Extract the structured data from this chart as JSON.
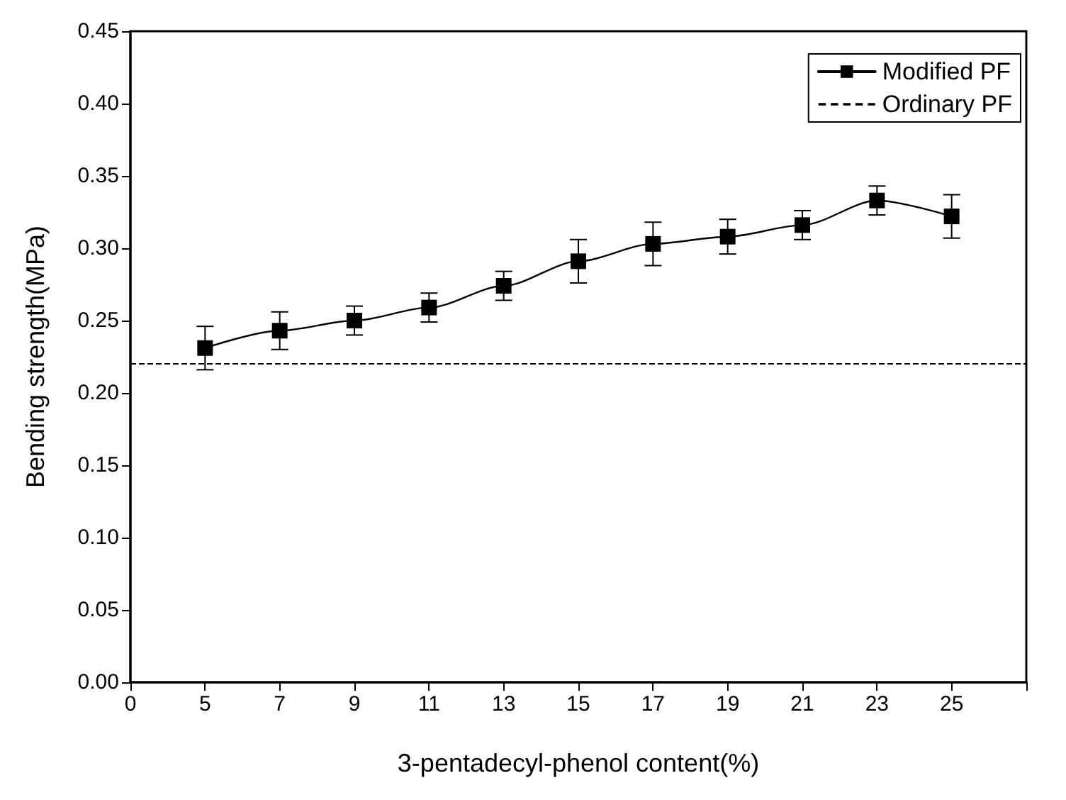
{
  "chart_data": {
    "type": "line",
    "xlabel": "3-pentadecyl-phenol content(%)",
    "ylabel": "Bending strength(MPa)",
    "categories": [
      "0",
      "5",
      "7",
      "9",
      "11",
      "13",
      "15",
      "17",
      "19",
      "21",
      "23",
      "25",
      null
    ],
    "series": [
      {
        "name": "Modified PF",
        "color": "#000000",
        "values": [
          null,
          0.231,
          0.243,
          0.25,
          0.259,
          0.274,
          0.291,
          0.303,
          0.308,
          0.316,
          0.333,
          0.322,
          null
        ],
        "errors": [
          null,
          0.015,
          0.013,
          0.01,
          0.01,
          0.01,
          0.015,
          0.015,
          0.012,
          0.01,
          0.01,
          0.015,
          null
        ]
      }
    ],
    "ref_lines": [
      {
        "axis": "y",
        "value": 0.22,
        "label": "Ordinary PF",
        "color": "#000000",
        "line_style": "dashed"
      }
    ],
    "ylim": [
      0,
      0.45
    ],
    "yticks": [
      {
        "value": 0,
        "label": "0.00"
      },
      {
        "value": 0.05,
        "label": "0.05"
      },
      {
        "value": 0.1,
        "label": "0.10"
      },
      {
        "value": 0.15,
        "label": "0.15"
      },
      {
        "value": 0.2,
        "label": "0.20"
      },
      {
        "value": 0.25,
        "label": "0.25"
      },
      {
        "value": 0.3,
        "label": "0.30"
      },
      {
        "value": 0.35,
        "label": "0.35"
      },
      {
        "value": 0.4,
        "label": "0.40"
      },
      {
        "value": 0.45,
        "label": "0.45"
      }
    ],
    "marker": "square",
    "line_style": "solid",
    "grid": false,
    "legend": "top right"
  }
}
